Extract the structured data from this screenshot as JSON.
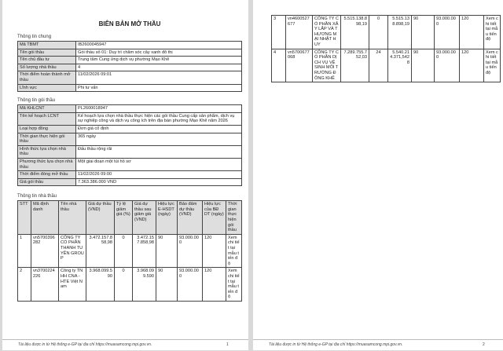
{
  "title": "BIÊN BẢN MỞ THẦU",
  "general": {
    "heading": "Thông tin chung",
    "rows": [
      {
        "label": "Mã TBMT",
        "value": "IB2600045947"
      },
      {
        "label": "Tên gói thầu",
        "value": "Gói thầu số 01: Duy trì chăm sóc cây xanh đô thị"
      },
      {
        "label": "Tên chủ đầu tư",
        "value": "Trung tâm Cung ứng dịch vụ phường Mạo Khê"
      },
      {
        "label": "Số lượng nhà thầu",
        "value": "4"
      },
      {
        "label": "Thời điểm hoàn thành mở thầu",
        "value": "11/02/2026 09:01"
      },
      {
        "label": "Lĩnh vực",
        "value": "Phi tư vấn"
      }
    ]
  },
  "package": {
    "heading": "Thông tin gói thầu",
    "rows": [
      {
        "label": "Mã KHLCNT",
        "value": "PL2600018947"
      },
      {
        "label": "Tên kế hoạch LCNT",
        "value": "Kế hoạch lựa chọn nhà thầu thực hiện các gói thầu Cung cấp sản phẩm, dịch vụ sự nghiệp công và dịch vụ công ích trên địa bàn phường Mạo Khê năm 2026"
      },
      {
        "label": "Loại hợp đồng",
        "value": "Đơn giá cố định"
      },
      {
        "label": "Thời gian thực hiện gói thầu",
        "value": "365 ngày"
      },
      {
        "label": "Hình thức lựa chọn nhà thầu",
        "value": "Đấu thầu rộng rãi"
      },
      {
        "label": "Phương thức lựa chọn nhà thầu",
        "value": "Một giai đoạn một túi hồ sơ"
      },
      {
        "label": "Thời điểm đóng mở thầu",
        "value": "11/02/2026 09:00"
      },
      {
        "label": "Giá gói thầu",
        "value": "7.363.386.000 VND"
      }
    ]
  },
  "bidders": {
    "heading": "Thông tin nhà thầu",
    "columns": [
      "STT",
      "Mã định danh",
      "Tên nhà thầu",
      "Giá dự thầu (VND)",
      "Tỷ lệ giảm giá (%)",
      "Giá dự thầu sau giảm giá (VND)",
      "Hiệu lực E-HSDT (ngày)",
      "Bảo đảm dự thầu (VND)",
      "Hiệu lực của BĐ DT (ngày)",
      "Thời gian thực hiện gói thầu"
    ],
    "rows": [
      [
        "1",
        "vn5700396282",
        "CÔNG TY CỔ PHẦN THANH TUYỀN GROUP",
        "3.472.157.858,98",
        "0",
        "3.472.157.858,98",
        "90",
        "93.000.000",
        "120",
        "Xem chi tiết tại mẫu tiến độ"
      ],
      [
        "2",
        "vn3700224226",
        "Công ty TNHH CNA - HTE Việt Nam",
        "3.968.099.590",
        "0",
        "3.968.099.590",
        "90",
        "93.000.000",
        "120",
        "Xem chi tiết tại mẫu tiến độ"
      ],
      [
        "3",
        "vn4600527677",
        "CÔNG TY CỔ PHẦN XÂY LẮP VÀ THƯƠNG MẠI NHẬT HUY",
        "5.515.138.898,19",
        "0",
        "5.515.138.898,19",
        "90",
        "93.000.000",
        "120",
        "Xem chi tiết tại mẫu tiến độ"
      ],
      [
        "4",
        "vn5700677068",
        "CÔNG TY CỔ PHẦN DỊCH VỤ VỆ SINH MÔI TRƯỜNG ĐÔNG KHÊ",
        "7.289.755.752,03",
        "24",
        "5.540.214.371,5428",
        "90",
        "93.000.000",
        "120",
        "Xem chi tiết tại mẫu tiến độ"
      ]
    ]
  },
  "footer": {
    "text": "Tài liệu được in từ Hệ thống e-GP tại địa chỉ https://muasamcong.mpi.gov.vn.",
    "page1": "1",
    "page2": "2"
  }
}
